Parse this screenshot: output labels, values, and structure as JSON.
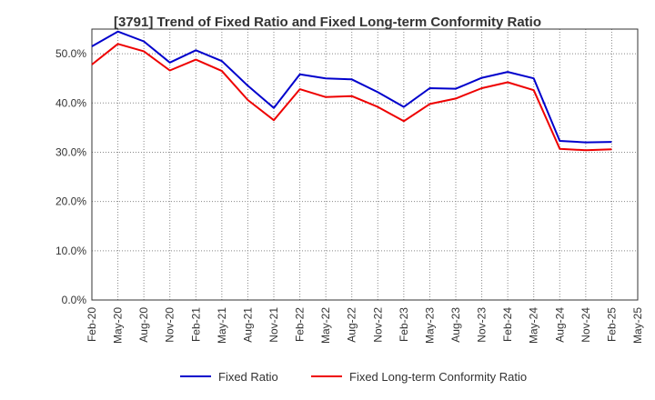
{
  "chart_data": {
    "type": "line",
    "title": "[3791]  Trend of Fixed Ratio and Fixed Long-term Conformity Ratio",
    "xlabel": "",
    "ylabel": "",
    "ylim": [
      0,
      55
    ],
    "y_ticks": [
      "0.0%",
      "10.0%",
      "20.0%",
      "30.0%",
      "40.0%",
      "50.0%"
    ],
    "y_tick_values": [
      0,
      10,
      20,
      30,
      40,
      50
    ],
    "x_tick_labels": [
      "Feb-20",
      "May-20",
      "Aug-20",
      "Nov-20",
      "Feb-21",
      "May-21",
      "Aug-21",
      "Nov-21",
      "Feb-22",
      "May-22",
      "Aug-22",
      "Nov-22",
      "Feb-23",
      "May-23",
      "Aug-23",
      "Nov-23",
      "Feb-24",
      "May-24",
      "Aug-24",
      "Nov-24",
      "Feb-25",
      "May-25"
    ],
    "grid": true,
    "legend_position": "bottom",
    "series": [
      {
        "name": "Fixed Ratio",
        "color": "#0000cc",
        "values": [
          51.5,
          54.5,
          52.5,
          48.2,
          50.7,
          48.5,
          43.5,
          39.0,
          45.8,
          45.0,
          44.8,
          42.2,
          39.2,
          43.0,
          42.9,
          45.1,
          46.3,
          45.0,
          32.3,
          32.0,
          32.1
        ]
      },
      {
        "name": "Fixed Long-term Conformity Ratio",
        "color": "#ee0000",
        "values": [
          47.8,
          52.0,
          50.5,
          46.6,
          48.8,
          46.5,
          40.6,
          36.5,
          42.8,
          41.2,
          41.4,
          39.2,
          36.3,
          39.8,
          40.9,
          43.0,
          44.2,
          42.6,
          30.7,
          30.4,
          30.6
        ]
      }
    ]
  }
}
